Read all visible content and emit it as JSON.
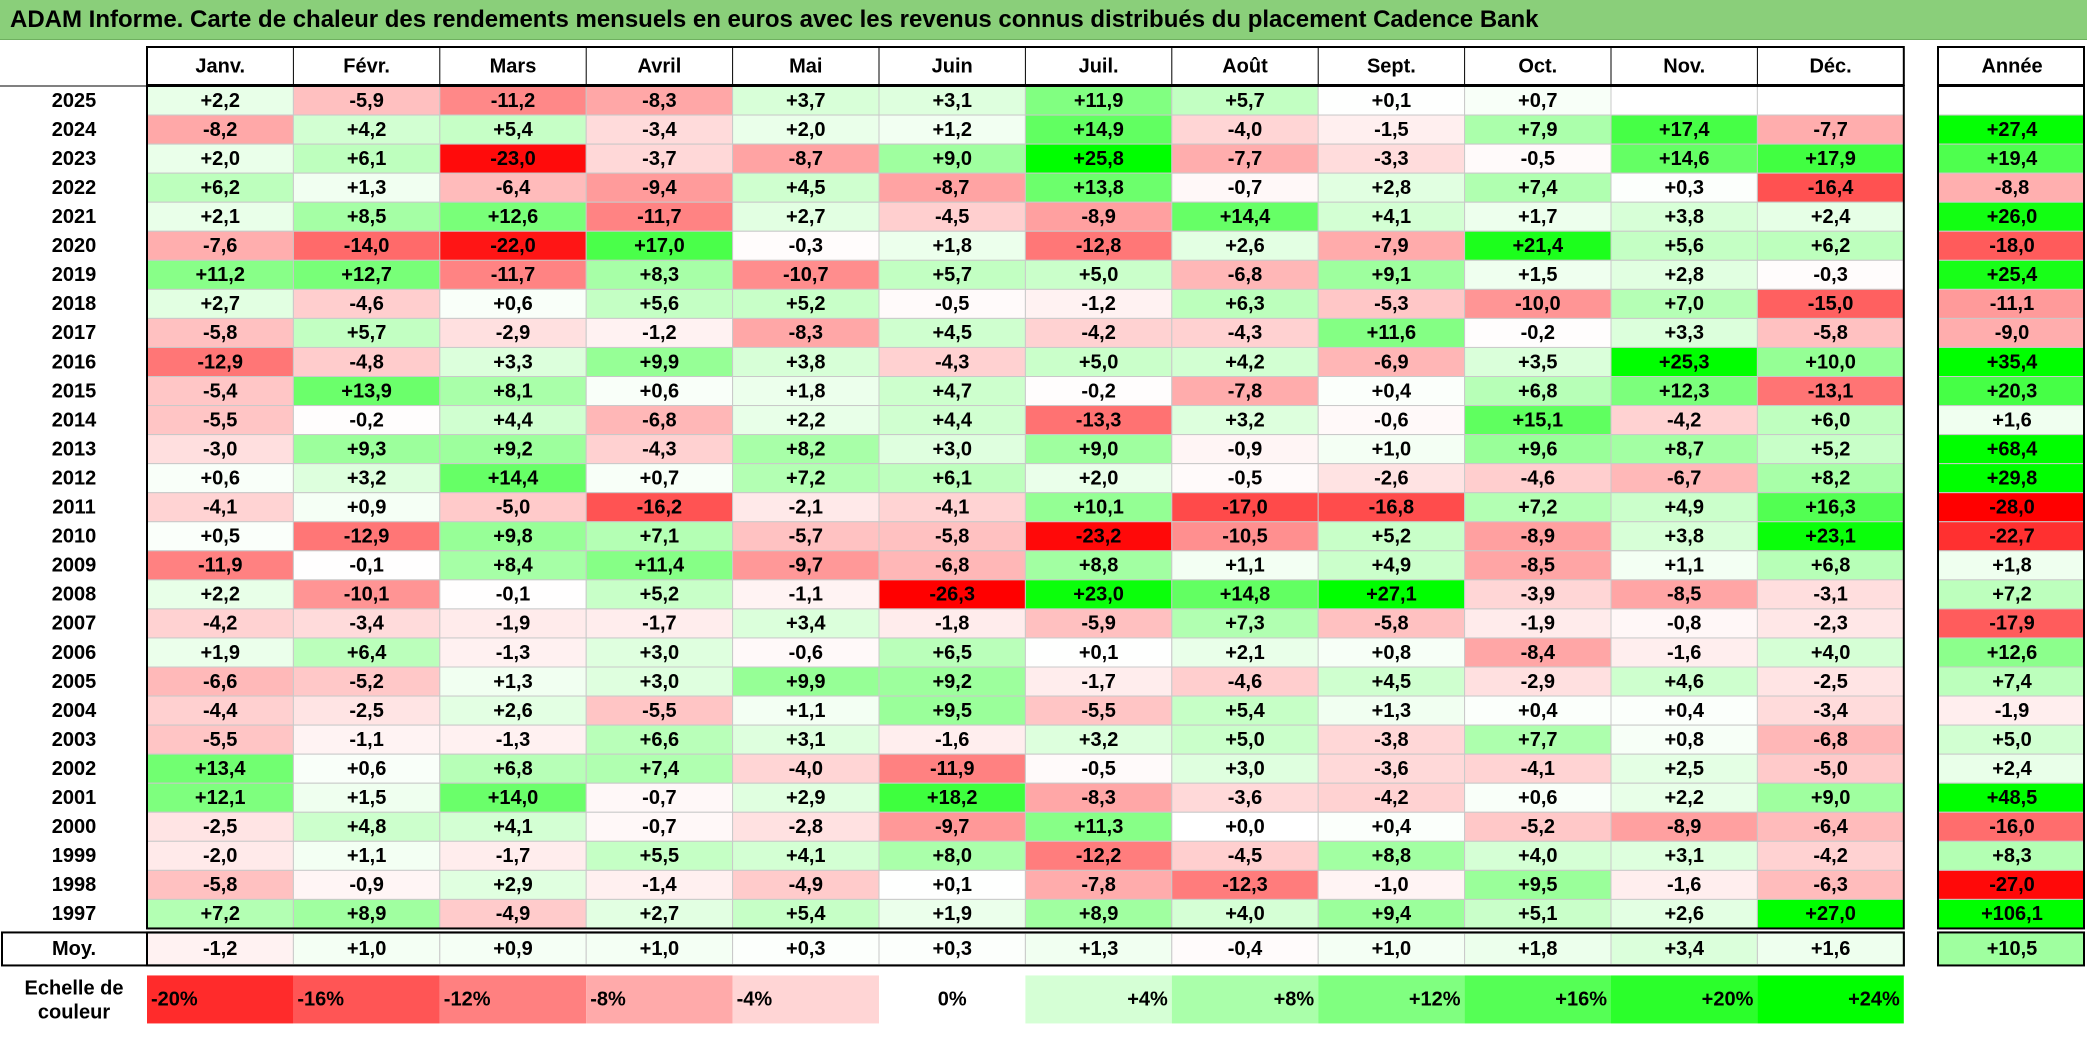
{
  "title": "ADAM Informe. Carte de chaleur des rendements mensuels en euros avec les revenus connus distribués du placement Cadence Bank",
  "chart_data": {
    "type": "heatmap",
    "columns": [
      "Janv.",
      "Févr.",
      "Mars",
      "Avril",
      "Mai",
      "Juin",
      "Juil.",
      "Août",
      "Sept.",
      "Oct.",
      "Nov.",
      "Déc."
    ],
    "year_header": "Année",
    "rows": [
      {
        "label": "2025",
        "values": [
          "+2,2",
          "-5,9",
          "-11,2",
          "-8,3",
          "+3,7",
          "+3,1",
          "+11,9",
          "+5,7",
          "+0,1",
          "+0,7",
          "",
          ""
        ],
        "year": ""
      },
      {
        "label": "2024",
        "values": [
          "-8,2",
          "+4,2",
          "+5,4",
          "-3,4",
          "+2,0",
          "+1,2",
          "+14,9",
          "-4,0",
          "-1,5",
          "+7,9",
          "+17,4",
          "-7,7"
        ],
        "year": "+27,4"
      },
      {
        "label": "2023",
        "values": [
          "+2,0",
          "+6,1",
          "-23,0",
          "-3,7",
          "-8,7",
          "+9,0",
          "+25,8",
          "-7,7",
          "-3,3",
          "-0,5",
          "+14,6",
          "+17,9"
        ],
        "year": "+19,4"
      },
      {
        "label": "2022",
        "values": [
          "+6,2",
          "+1,3",
          "-6,4",
          "-9,4",
          "+4,5",
          "-8,7",
          "+13,8",
          "-0,7",
          "+2,8",
          "+7,4",
          "+0,3",
          "-16,4"
        ],
        "year": "-8,8"
      },
      {
        "label": "2021",
        "values": [
          "+2,1",
          "+8,5",
          "+12,6",
          "-11,7",
          "+2,7",
          "-4,5",
          "-8,9",
          "+14,4",
          "+4,1",
          "+1,7",
          "+3,8",
          "+2,4"
        ],
        "year": "+26,0"
      },
      {
        "label": "2020",
        "values": [
          "-7,6",
          "-14,0",
          "-22,0",
          "+17,0",
          "-0,3",
          "+1,8",
          "-12,8",
          "+2,6",
          "-7,9",
          "+21,4",
          "+5,6",
          "+6,2"
        ],
        "year": "-18,0"
      },
      {
        "label": "2019",
        "values": [
          "+11,2",
          "+12,7",
          "-11,7",
          "+8,3",
          "-10,7",
          "+5,7",
          "+5,0",
          "-6,8",
          "+9,1",
          "+1,5",
          "+2,8",
          "-0,3"
        ],
        "year": "+25,4"
      },
      {
        "label": "2018",
        "values": [
          "+2,7",
          "-4,6",
          "+0,6",
          "+5,6",
          "+5,2",
          "-0,5",
          "-1,2",
          "+6,3",
          "-5,3",
          "-10,0",
          "+7,0",
          "-15,0"
        ],
        "year": "-11,1"
      },
      {
        "label": "2017",
        "values": [
          "-5,8",
          "+5,7",
          "-2,9",
          "-1,2",
          "-8,3",
          "+4,5",
          "-4,2",
          "-4,3",
          "+11,6",
          "-0,2",
          "+3,3",
          "-5,8"
        ],
        "year": "-9,0"
      },
      {
        "label": "2016",
        "values": [
          "-12,9",
          "-4,8",
          "+3,3",
          "+9,9",
          "+3,8",
          "-4,3",
          "+5,0",
          "+4,2",
          "-6,9",
          "+3,5",
          "+25,3",
          "+10,0"
        ],
        "year": "+35,4"
      },
      {
        "label": "2015",
        "values": [
          "-5,4",
          "+13,9",
          "+8,1",
          "+0,6",
          "+1,8",
          "+4,7",
          "-0,2",
          "-7,8",
          "+0,4",
          "+6,8",
          "+12,3",
          "-13,1"
        ],
        "year": "+20,3"
      },
      {
        "label": "2014",
        "values": [
          "-5,5",
          "-0,2",
          "+4,4",
          "-6,8",
          "+2,2",
          "+4,4",
          "-13,3",
          "+3,2",
          "-0,6",
          "+15,1",
          "-4,2",
          "+6,0"
        ],
        "year": "+1,6"
      },
      {
        "label": "2013",
        "values": [
          "-3,0",
          "+9,3",
          "+9,2",
          "-4,3",
          "+8,2",
          "+3,0",
          "+9,0",
          "-0,9",
          "+1,0",
          "+9,6",
          "+8,7",
          "+5,2"
        ],
        "year": "+68,4"
      },
      {
        "label": "2012",
        "values": [
          "+0,6",
          "+3,2",
          "+14,4",
          "+0,7",
          "+7,2",
          "+6,1",
          "+2,0",
          "-0,5",
          "-2,6",
          "-4,6",
          "-6,7",
          "+8,2"
        ],
        "year": "+29,8"
      },
      {
        "label": "2011",
        "values": [
          "-4,1",
          "+0,9",
          "-5,0",
          "-16,2",
          "-2,1",
          "-4,1",
          "+10,1",
          "-17,0",
          "-16,8",
          "+7,2",
          "+4,9",
          "+16,3"
        ],
        "year": "-28,0"
      },
      {
        "label": "2010",
        "values": [
          "+0,5",
          "-12,9",
          "+9,8",
          "+7,1",
          "-5,7",
          "-5,8",
          "-23,2",
          "-10,5",
          "+5,2",
          "-8,9",
          "+3,8",
          "+23,1"
        ],
        "year": "-22,7"
      },
      {
        "label": "2009",
        "values": [
          "-11,9",
          "-0,1",
          "+8,4",
          "+11,4",
          "-9,7",
          "-6,8",
          "+8,8",
          "+1,1",
          "+4,9",
          "-8,5",
          "+1,1",
          "+6,8"
        ],
        "year": "+1,8"
      },
      {
        "label": "2008",
        "values": [
          "+2,2",
          "-10,1",
          "-0,1",
          "+5,2",
          "-1,1",
          "-26,3",
          "+23,0",
          "+14,8",
          "+27,1",
          "-3,9",
          "-8,5",
          "-3,1"
        ],
        "year": "+7,2"
      },
      {
        "label": "2007",
        "values": [
          "-4,2",
          "-3,4",
          "-1,9",
          "-1,7",
          "+3,4",
          "-1,8",
          "-5,9",
          "+7,3",
          "-5,8",
          "-1,9",
          "-0,8",
          "-2,3"
        ],
        "year": "-17,9"
      },
      {
        "label": "2006",
        "values": [
          "+1,9",
          "+6,4",
          "-1,3",
          "+3,0",
          "-0,6",
          "+6,5",
          "+0,1",
          "+2,1",
          "+0,8",
          "-8,4",
          "-1,6",
          "+4,0"
        ],
        "year": "+12,6"
      },
      {
        "label": "2005",
        "values": [
          "-6,6",
          "-5,2",
          "+1,3",
          "+3,0",
          "+9,9",
          "+9,2",
          "-1,7",
          "-4,6",
          "+4,5",
          "-2,9",
          "+4,6",
          "-2,5"
        ],
        "year": "+7,4"
      },
      {
        "label": "2004",
        "values": [
          "-4,4",
          "-2,5",
          "+2,6",
          "-5,5",
          "+1,1",
          "+9,5",
          "-5,5",
          "+5,4",
          "+1,3",
          "+0,4",
          "+0,4",
          "-3,4"
        ],
        "year": "-1,9"
      },
      {
        "label": "2003",
        "values": [
          "-5,5",
          "-1,1",
          "-1,3",
          "+6,6",
          "+3,1",
          "-1,6",
          "+3,2",
          "+5,0",
          "-3,8",
          "+7,7",
          "+0,8",
          "-6,8"
        ],
        "year": "+5,0"
      },
      {
        "label": "2002",
        "values": [
          "+13,4",
          "+0,6",
          "+6,8",
          "+7,4",
          "-4,0",
          "-11,9",
          "-0,5",
          "+3,0",
          "-3,6",
          "-4,1",
          "+2,5",
          "-5,0"
        ],
        "year": "+2,4"
      },
      {
        "label": "2001",
        "values": [
          "+12,1",
          "+1,5",
          "+14,0",
          "-0,7",
          "+2,9",
          "+18,2",
          "-8,3",
          "-3,6",
          "-4,2",
          "+0,6",
          "+2,2",
          "+9,0"
        ],
        "year": "+48,5"
      },
      {
        "label": "2000",
        "values": [
          "-2,5",
          "+4,8",
          "+4,1",
          "-0,7",
          "-2,8",
          "-9,7",
          "+11,3",
          "+0,0",
          "+0,4",
          "-5,2",
          "-8,9",
          "-6,4"
        ],
        "year": "-16,0"
      },
      {
        "label": "1999",
        "values": [
          "-2,0",
          "+1,1",
          "-1,7",
          "+5,5",
          "+4,1",
          "+8,0",
          "-12,2",
          "-4,5",
          "+8,8",
          "+4,0",
          "+3,1",
          "-4,2"
        ],
        "year": "+8,3"
      },
      {
        "label": "1998",
        "values": [
          "-5,8",
          "-0,9",
          "+2,9",
          "-1,4",
          "-4,9",
          "+0,1",
          "-7,8",
          "-12,3",
          "-1,0",
          "+9,5",
          "-1,6",
          "-6,3"
        ],
        "year": "-27,0"
      },
      {
        "label": "1997",
        "values": [
          "+7,2",
          "+8,9",
          "-4,9",
          "+2,7",
          "+5,4",
          "+1,9",
          "+8,9",
          "+4,0",
          "+9,4",
          "+5,1",
          "+2,6",
          "+27,0"
        ],
        "year": "+106,1"
      }
    ],
    "average": {
      "label": "Moy.",
      "values": [
        "-1,2",
        "+1,0",
        "+0,9",
        "+1,0",
        "+0,3",
        "+0,3",
        "+1,3",
        "-0,4",
        "+1,0",
        "+1,8",
        "+3,4",
        "+1,6"
      ],
      "year": "+10,5"
    },
    "scale": {
      "label_line1": "Echelle de",
      "label_line2": "couleur",
      "steps": [
        "-20%",
        "-16%",
        "-12%",
        "-8%",
        "-4%",
        "0%",
        "+4%",
        "+8%",
        "+12%",
        "+16%",
        "+20%",
        "+24%"
      ]
    },
    "colors": {
      "negative_max": "#ff0000",
      "positive_max": "#00ff00",
      "neutral": "#ffffff",
      "title_bg": "#8acf7a"
    }
  }
}
